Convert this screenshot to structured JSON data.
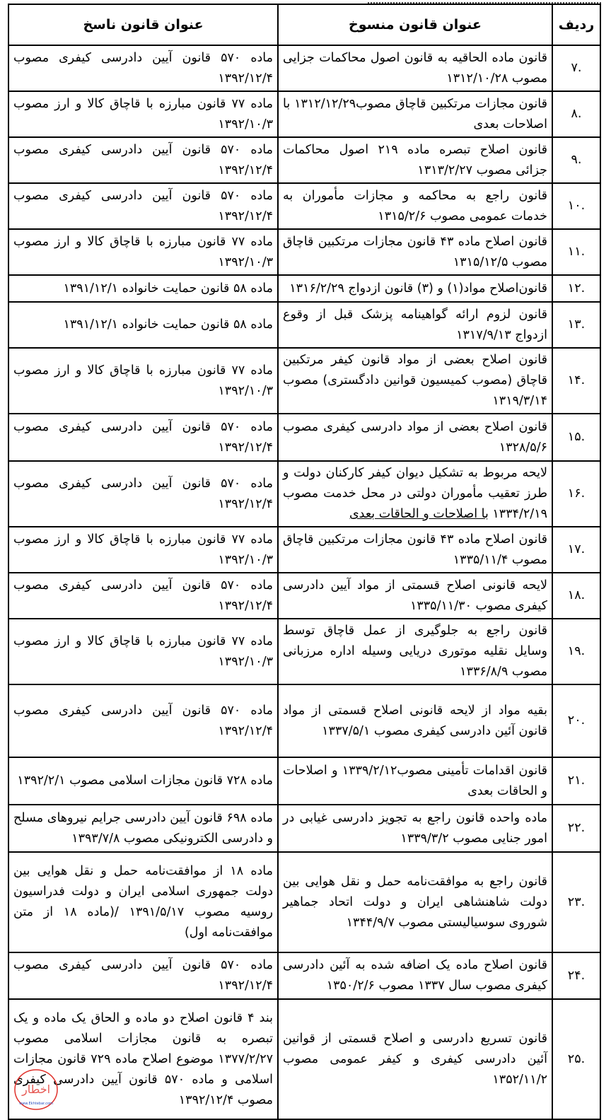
{
  "headers": {
    "row": "ردیف",
    "repealed": "عنوان قانون منسوخ",
    "repealing": "عنوان قانون ناسخ"
  },
  "rows": [
    {
      "num": ".۷",
      "repealed": "قانون ماده الحاقیه به قانون اصول محاکمات جزایی مصوب ۱۳۱۲/۱۰/۲۸",
      "repealing": "ماده ۵۷۰ قانون آیین دادرسی کیفری مصوب ۱۳۹۲/۱۲/۴"
    },
    {
      "num": ".۸",
      "repealed": "قانون مجازات مرتکبین قاچاق مصوب۱۳۱۲/۱۲/۲۹ با اصلاحات بعدی",
      "repealing": "ماده ۷۷ قانون مبارزه با قاچاق کالا و ارز مصوب ۱۳۹۲/۱۰/۳"
    },
    {
      "num": ".۹",
      "repealed": "قانون اصلاح تبصره ماده ۲۱۹ اصول محاکمات جزائی مصوب ۱۳۱۳/۲/۲۷",
      "repealing": "ماده ۵۷۰ قانون آیین دادرسی کیفری مصوب ۱۳۹۲/۱۲/۴"
    },
    {
      "num": ".۱۰",
      "repealed": "قانون راجع به محاکمه و مجازات مأموران به خدمات عمومی مصوب ۱۳۱۵/۲/۶",
      "repealing": "ماده ۵۷۰ قانون آیین دادرسی کیفری مصوب ۱۳۹۲/۱۲/۴"
    },
    {
      "num": ".۱۱",
      "repealed": "قانون اصلاح ماده ۴۳ قانون مجازات مرتکبین قاچاق مصوب ۱۳۱۵/۱۲/۵",
      "repealing": "ماده ۷۷ قانون مبارزه با قاچاق کالا و ارز مصوب ۱۳۹۲/۱۰/۳"
    },
    {
      "num": ".۱۲",
      "repealed": "قانون‌اصلاح مواد(۱) و (۳) قانون ازدواج ۱۳۱۶/۲/۲۹",
      "repealing": "ماده ۵۸ قانون حمایت خانواده ۱۳۹۱/۱۲/۱"
    },
    {
      "num": ".۱۳",
      "repealed": "قانون لزوم ارائه گواهینامه پزشک قبل از وقوع ازدواج ۱۳۱۷/۹/۱۳",
      "repealing": "ماده ۵۸ قانون حمایت خانواده ۱۳۹۱/۱۲/۱"
    },
    {
      "num": ".۱۴",
      "repealed": "قانون اصلاح بعضی از مواد قانون کیفر مرتکبین قاچاق (مصوب کمیسیون قوانین دادگستری) مصوب ۱۳۱۹/۳/۱۴",
      "repealing": "ماده ۷۷ قانون مبارزه با قاچاق کالا و ارز مصوب ۱۳۹۲/۱۰/۳"
    },
    {
      "num": ".۱۵",
      "repealed": "قانون اصلاح بعضی از مواد دادرسی کیفری مصوب ۱۳۲۸/۵/۶",
      "repealing": "ماده ۵۷۰ قانون آیین دادرسی کیفری مصوب ۱۳۹۲/۱۲/۴"
    },
    {
      "num": ".۱۶",
      "repealed": "لایحه مربوط به تشکیل دیوان کیفر کارکنان دولت و طرز تعقیب مأموران دولتی در محل خدمت مصوب ۱۳۳۴/۲/۱۹ ",
      "repealed_underlined": "با اصلاحات و الحاقات بعدی",
      "repealing": "ماده ۵۷۰ قانون آیین دادرسی کیفری مصوب ۱۳۹۲/۱۲/۴"
    },
    {
      "num": ".۱۷",
      "repealed": "قانون اصلاح ماده ۴۳ قانون مجازات مرتکبین قاچاق مصوب ۱۳۳۵/۱۱/۴",
      "repealing": "ماده ۷۷ قانون مبارزه با قاچاق کالا و ارز مصوب ۱۳۹۲/۱۰/۳"
    },
    {
      "num": ".۱۸",
      "repealed": "لایحه قانونی اصلاح قسمتی از مواد آیین دادرسی کیفری مصوب ۱۳۳۵/۱۱/۳۰",
      "repealing": "ماده ۵۷۰ قانون آیین دادرسی کیفری مصوب ۱۳۹۲/۱۲/۴"
    },
    {
      "num": ".۱۹",
      "repealed": "قانون راجع به جلوگیری از عمل قاچاق توسط وسایل نقلیه موتوری دریایی وسیله اداره مرزبانی مصوب ۱۳۳۶/۸/۹",
      "repealing": "ماده ۷۷ قانون مبارزه با قاچاق کالا و ارز مصوب ۱۳۹۲/۱۰/۳"
    },
    {
      "num": ".۲۰",
      "repealed": "بقیه مواد از لایحه قانونی اصلاح قسمتی از مواد قانون آئین دادرسی کیفری مصوب ۱۳۳۷/۵/۱",
      "repealing": "ماده ۵۷۰ قانون آیین دادرسی کیفری مصوب ۱۳۹۲/۱۲/۴"
    },
    {
      "num": ".۲۱",
      "repealed": "قانون اقدامات تأمینی مصوب۱۳۳۹/۲/۱۲ و اصلاحات و الحاقات بعدی",
      "repealing": "ماده ۷۲۸ قانون مجازات اسلامی مصوب ۱۳۹۲/۲/۱"
    },
    {
      "num": ".۲۲",
      "repealed": "ماده واحده قانون راجع به تجویز دادرسی غیابی در امور جنایی مصوب ۱۳۳۹/۳/۲",
      "repealing": "ماده ۶۹۸ قانون آیین دادرسی جرایم نیروهای مسلح و دادرسی الکترونیکی مصوب ۱۳۹۳/۷/۸"
    },
    {
      "num": ".۲۳",
      "repealed": "قانون راجع به موافقت‌نامه حمل و نقل هوایی بین دولت شاهنشاهی ایران و دولت اتحاد جماهیر شوروی سوسیالیستی مصوب ۱۳۴۴/۹/۷",
      "repealing": "ماده ۱۸ از موافقت‌نامه حمل و نقل هوایی بین دولت جمهوری اسلامی ایران و دولت فدراسیون روسیه مصوب ۱۳۹۱/۵/۱۷ /(ماده ۱۸ از متن موافقت‌نامه اول)"
    },
    {
      "num": ".۲۴",
      "repealed": "قانون اصلاح ماده یک اضافه شده به آئین دادرسی کیفری مصوب سال ۱۳۳۷ مصوب ۱۳۵۰/۲/۶",
      "repealing": "ماده ۵۷۰ قانون آیین دادرسی کیفری مصوب ۱۳۹۲/۱۲/۴"
    },
    {
      "num": ".۲۵",
      "repealed": "قانون تسریع دادرسی و اصلاح قسمتی از قوانین آئین دادرسی کیفری و کیفر عمومی مصوب ۱۳۵۲/۱۱/۲",
      "repealing": "بند ۴ قانون اصلاح دو ماده و الحاق یک ماده و یک تبصره به قانون مجازات اسلامی مصوب ۱۳۷۷/۲/۲۷ موضوع اصلاح ماده ۷۲۹ قانون مجازات اسلامی و ماده ۵۷۰ قانون آیین دادرسی کیفری مصوب ۱۳۹۲/۱۲/۴"
    }
  ],
  "watermark": {
    "text": "اخطار",
    "url_text": "www.Ekhtebar.com",
    "color": "#e0302a"
  }
}
